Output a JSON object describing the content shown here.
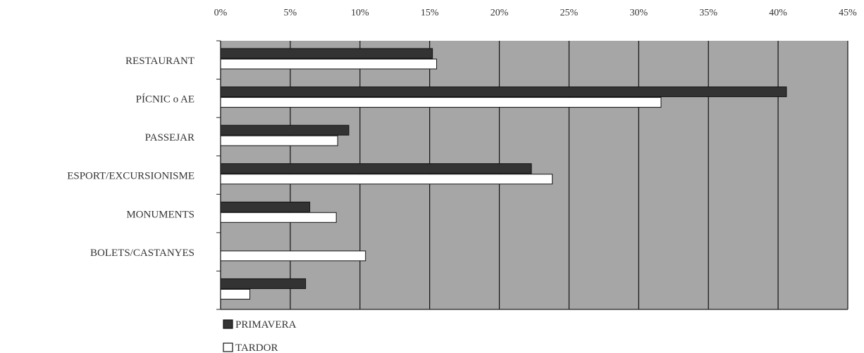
{
  "chart_data": {
    "type": "bar",
    "orientation": "horizontal",
    "categories": [
      "RESTAURANT",
      "PÍCNIC o AE",
      "PASSEJAR",
      "ESPORT/EXCURSIONISME",
      "MONUMENTS",
      "BOLETS/CASTANYES",
      ""
    ],
    "series": [
      {
        "name": "PRIMAVERA",
        "values": [
          15.2,
          40.6,
          9.2,
          22.3,
          6.4,
          0,
          6.1
        ],
        "color": "#333333"
      },
      {
        "name": "TARDOR",
        "values": [
          15.5,
          31.6,
          8.4,
          23.8,
          8.3,
          10.4,
          2.1
        ],
        "color": "#ffffff"
      }
    ],
    "xlim": [
      0,
      45
    ],
    "x_ticks": [
      "0%",
      "5%",
      "10%",
      "15%",
      "20%",
      "25%",
      "30%",
      "35%",
      "40%",
      "45%"
    ],
    "x_axis_position": "top",
    "grid": true,
    "plot_background": "#a6a6a6",
    "legend_position": "bottom-left"
  }
}
